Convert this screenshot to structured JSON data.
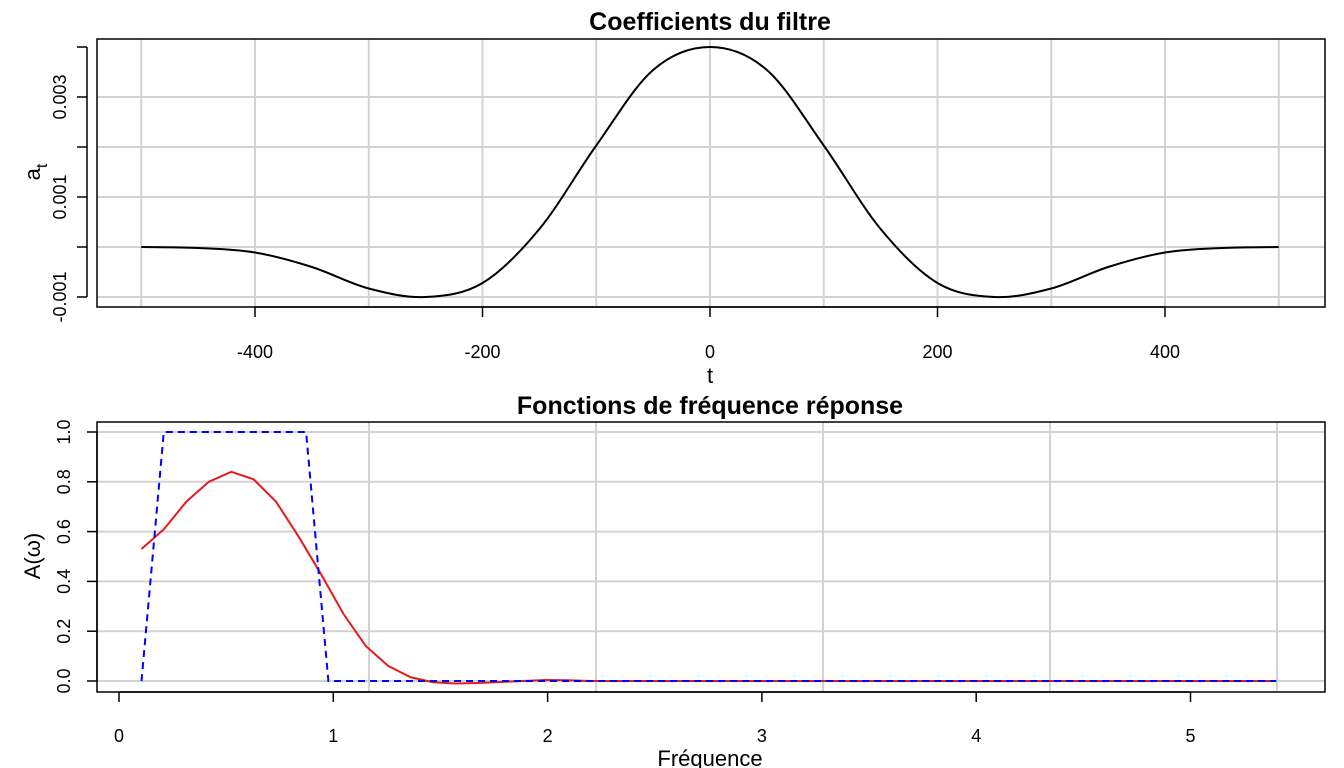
{
  "colors": {
    "curve": "#000000",
    "red": "#e41a1c",
    "blue": "#0000ff",
    "grid": "#d3d3d3"
  },
  "chart_data": [
    {
      "type": "line",
      "title": "Coefficients du filtre",
      "xlabel": "t",
      "ylabel_main": "a",
      "ylabel_sub": "t",
      "xlim": [
        -500,
        500
      ],
      "ylim": [
        -0.001,
        0.004
      ],
      "xticks": [
        -400,
        -200,
        0,
        200,
        400
      ],
      "xtick_labels": [
        "-400",
        "-200",
        "0",
        "200",
        "400"
      ],
      "yticks": [
        -0.001,
        0.001,
        0.003
      ],
      "ytick_labels": [
        "-0.001",
        "0.001",
        "0.003"
      ],
      "grid": true,
      "series": [
        {
          "x": [
            -500,
            -450,
            -400,
            -350,
            -300,
            -250,
            -200,
            -150,
            -100,
            -50,
            0,
            50,
            100,
            150,
            200,
            250,
            300,
            350,
            400,
            450,
            500
          ],
          "y": [
            0.0,
            -2e-05,
            -0.00011,
            -0.0004,
            -0.00083,
            -0.001,
            -0.00072,
            0.00036,
            0.00203,
            0.00354,
            0.004,
            0.00354,
            0.00203,
            0.00036,
            -0.00072,
            -0.001,
            -0.00083,
            -0.0004,
            -0.00011,
            -2e-05,
            0.0
          ]
        }
      ]
    },
    {
      "type": "line",
      "title": "Fonctions de fréquence réponse",
      "xlabel": "Fréquence",
      "ylabel": "A(ω)",
      "xlim": [
        0.1,
        5.4
      ],
      "ylim": [
        0,
        1
      ],
      "xticks": [
        0,
        1,
        2,
        3,
        4,
        5
      ],
      "xtick_labels": [
        "0",
        "1",
        "2",
        "3",
        "4",
        "5"
      ],
      "yticks": [
        0,
        0.2,
        0.4,
        0.6,
        0.8,
        1.0
      ],
      "ytick_labels": [
        "0.0",
        "0.2",
        "0.4",
        "0.6",
        "0.8",
        "1.0"
      ],
      "grid": true,
      "series": [
        {
          "style": "solid",
          "x": [
            0.105,
            0.21,
            0.314,
            0.419,
            0.524,
            0.628,
            0.733,
            0.838,
            0.942,
            1.047,
            1.152,
            1.257,
            1.361,
            1.466,
            1.571,
            1.676,
            1.78,
            1.885,
            1.99,
            2.094,
            2.2,
            2.4,
            2.6,
            2.8,
            3.0,
            3.2,
            3.4,
            3.6,
            3.8,
            4.0,
            4.2,
            4.4,
            4.6,
            4.8,
            5.0,
            5.2,
            5.4
          ],
          "y": [
            0.53,
            0.61,
            0.72,
            0.8,
            0.84,
            0.81,
            0.72,
            0.58,
            0.43,
            0.27,
            0.14,
            0.06,
            0.015,
            -0.005,
            -0.01,
            -0.008,
            -0.004,
            0.0,
            0.004,
            0.003,
            0.0,
            0.0,
            0.0,
            0.0,
            0.0,
            0.0,
            0.0,
            0.0,
            0.0,
            0.0,
            0.0,
            0.0,
            0.0,
            0.0,
            0.0,
            0.0,
            0.0
          ]
        },
        {
          "style": "dashed",
          "x": [
            0.105,
            0.209,
            0.873,
            0.977,
            5.4
          ],
          "y": [
            0,
            1,
            1,
            0,
            0
          ]
        }
      ]
    }
  ]
}
